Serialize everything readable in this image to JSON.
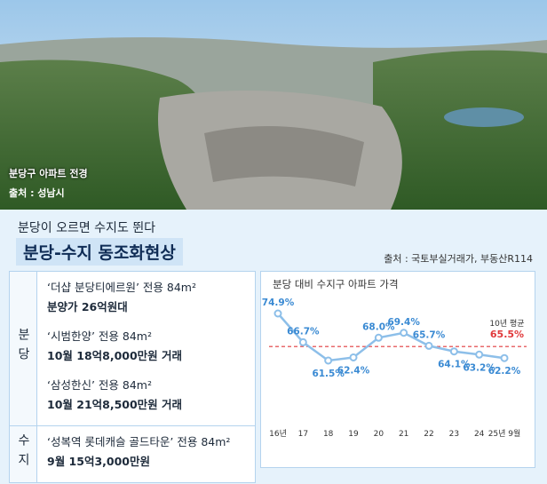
{
  "photo": {
    "caption": "분당구 아파트 전경",
    "source": "출처 : 성남시"
  },
  "header": {
    "subtitle": "분당이 오르면 수지도 뛴다",
    "title": "분당-수지 동조화현상",
    "source": "출처 : 국토부실거래가, 부동산R114"
  },
  "table": {
    "rows": [
      {
        "label": "분당",
        "items": [
          {
            "name": "‘더샵 분당티에르원’ 전용 84m²",
            "detail": "분양가 26억원대"
          },
          {
            "name": "‘시범한양’ 전용 84m²",
            "detail": "10월 18억8,000만원 거래"
          },
          {
            "name": "‘삼성한신’ 전용 84m²",
            "detail": "10월 21억8,500만원 거래"
          }
        ]
      },
      {
        "label": "수지",
        "items": [
          {
            "name": "‘성복역 롯데캐슬 골드타운’ 전용 84m²",
            "detail": "9월 15억3,000만원"
          }
        ]
      }
    ]
  },
  "chart_data": {
    "type": "line",
    "title": "분당 대비 수지구 아파트 가격",
    "categories": [
      "16년",
      "17",
      "18",
      "19",
      "20",
      "21",
      "22",
      "23",
      "24",
      "25년 9월"
    ],
    "values": [
      74.9,
      66.7,
      61.5,
      62.4,
      68.0,
      69.4,
      65.7,
      64.1,
      63.2,
      62.2
    ],
    "value_labels": [
      "74.9%",
      "66.7%",
      "61.5%",
      "62.4%",
      "68.0%",
      "69.4%",
      "65.7%",
      "64.1%",
      "63.2%",
      "62.2%"
    ],
    "color": "#8dbfe9",
    "label_color": "#3a8ad3",
    "average": {
      "label": "10년 평균",
      "value": 65.5,
      "value_label": "65.5%",
      "color": "#e0393b"
    }
  }
}
